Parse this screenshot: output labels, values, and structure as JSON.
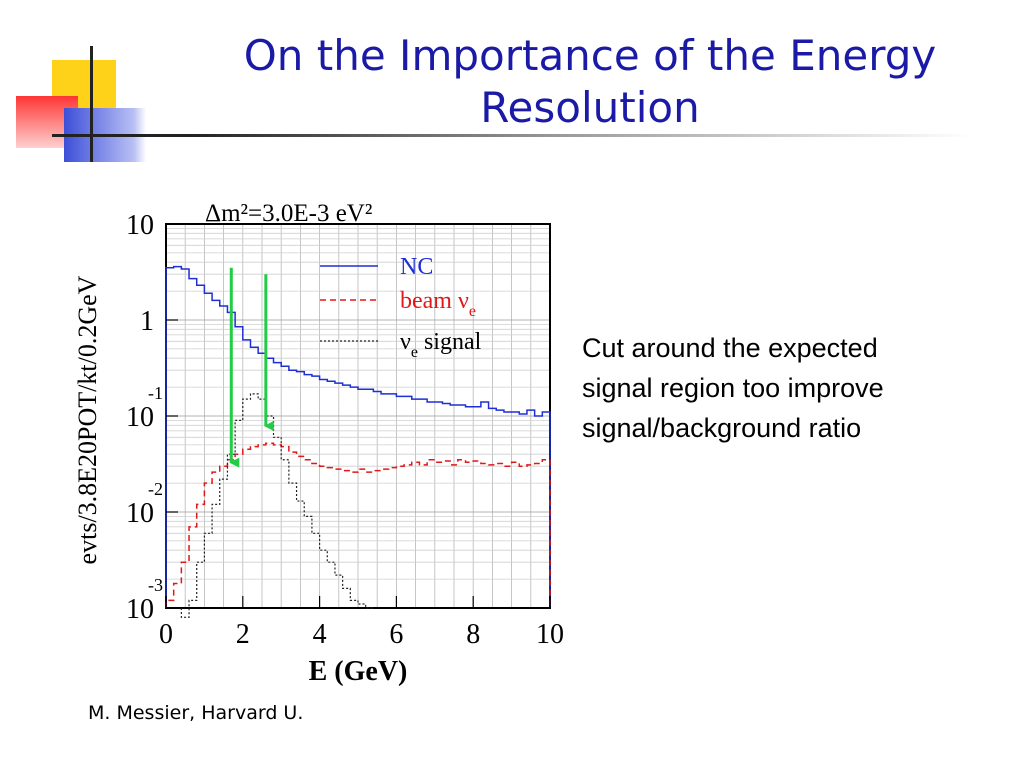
{
  "slide": {
    "title_line1": "On the Importance of the Energy",
    "title_line2": "Resolution",
    "caption_lines": [
      "Cut around the expected",
      "signal region too improve",
      "signal/background ratio"
    ],
    "credit": "M. Messier, Harvard U."
  },
  "colors": {
    "title": "#1a1aa6",
    "nc": "#1f2fd6",
    "beam": "#e01818",
    "signal": "#222222",
    "arrow": "#22cc44",
    "deco_yellow": "#ffd21a",
    "deco_red": "#ff3b3b",
    "deco_blue": "#3d4fd8"
  },
  "chart_data": {
    "type": "line",
    "title": "Δm²=3.0E-3 eV²",
    "xlabel": "E (GeV)",
    "ylabel": "evts/3.8E20POT/kt/0.2GeV",
    "xlim": [
      0,
      10
    ],
    "ylim": [
      0.001,
      10
    ],
    "yscale": "log",
    "xticks": [
      "0",
      "2",
      "4",
      "6",
      "8",
      "10"
    ],
    "yticks": [
      {
        "base": "10",
        "exp": "",
        "value": 10
      },
      {
        "base": "1",
        "exp": "",
        "value": 1
      },
      {
        "base": "10",
        "exp": "-1",
        "value": 0.1
      },
      {
        "base": "10",
        "exp": "-2",
        "value": 0.01
      },
      {
        "base": "10",
        "exp": "-3",
        "value": 0.001
      }
    ],
    "grid": true,
    "legend_position": "top-right",
    "series": [
      {
        "name": "NC",
        "style": "solid",
        "x": [
          0.0,
          0.2,
          0.4,
          0.6,
          0.8,
          1.0,
          1.2,
          1.4,
          1.6,
          1.8,
          2.0,
          2.2,
          2.4,
          2.6,
          2.8,
          3.0,
          3.2,
          3.4,
          3.6,
          3.8,
          4.0,
          4.2,
          4.4,
          4.6,
          4.8,
          5.0,
          5.2,
          5.4,
          5.6,
          5.8,
          6.0,
          6.2,
          6.4,
          6.6,
          6.8,
          7.0,
          7.2,
          7.4,
          7.6,
          7.8,
          8.0,
          8.2,
          8.4,
          8.6,
          8.8,
          9.0,
          9.2,
          9.4,
          9.6,
          9.8
        ],
        "y": [
          3.5,
          3.6,
          3.4,
          2.7,
          2.3,
          1.9,
          1.6,
          1.4,
          1.2,
          0.85,
          0.62,
          0.52,
          0.45,
          0.4,
          0.36,
          0.33,
          0.3,
          0.29,
          0.27,
          0.26,
          0.24,
          0.23,
          0.22,
          0.21,
          0.2,
          0.19,
          0.19,
          0.18,
          0.17,
          0.17,
          0.16,
          0.16,
          0.15,
          0.15,
          0.14,
          0.14,
          0.135,
          0.13,
          0.13,
          0.125,
          0.125,
          0.14,
          0.12,
          0.115,
          0.11,
          0.11,
          0.105,
          0.115,
          0.1,
          0.11
        ]
      },
      {
        "name": "beam νe",
        "style": "dashed",
        "x": [
          0.0,
          0.2,
          0.4,
          0.6,
          0.8,
          1.0,
          1.2,
          1.4,
          1.6,
          1.8,
          2.0,
          2.2,
          2.4,
          2.6,
          2.8,
          3.0,
          3.2,
          3.4,
          3.6,
          3.8,
          4.0,
          4.2,
          4.4,
          4.6,
          4.8,
          5.0,
          5.2,
          5.4,
          5.6,
          5.8,
          6.0,
          6.2,
          6.4,
          6.6,
          6.8,
          7.0,
          7.2,
          7.4,
          7.6,
          7.8,
          8.0,
          8.2,
          8.4,
          8.6,
          8.8,
          9.0,
          9.2,
          9.4,
          9.6,
          9.8
        ],
        "y": [
          0.0012,
          0.0018,
          0.003,
          0.007,
          0.012,
          0.02,
          0.026,
          0.03,
          0.035,
          0.04,
          0.045,
          0.048,
          0.05,
          0.052,
          0.05,
          0.048,
          0.042,
          0.038,
          0.035,
          0.032,
          0.03,
          0.029,
          0.028,
          0.027,
          0.026,
          0.028,
          0.026,
          0.027,
          0.028,
          0.029,
          0.03,
          0.031,
          0.033,
          0.031,
          0.035,
          0.033,
          0.034,
          0.031,
          0.035,
          0.033,
          0.034,
          0.032,
          0.031,
          0.032,
          0.03,
          0.033,
          0.03,
          0.031,
          0.032,
          0.035
        ]
      },
      {
        "name": "νe signal",
        "style": "dotted",
        "x": [
          0.0,
          0.2,
          0.4,
          0.6,
          0.8,
          1.0,
          1.2,
          1.4,
          1.6,
          1.8,
          2.0,
          2.2,
          2.4,
          2.6,
          2.8,
          3.0,
          3.2,
          3.4,
          3.6,
          3.8,
          4.0,
          4.2,
          4.4,
          4.6,
          4.8,
          5.0,
          5.2,
          5.4,
          5.6,
          5.8,
          6.0,
          6.2,
          6.4,
          6.6,
          6.8,
          7.0
        ],
        "y": [
          0.0,
          0.0,
          0.0008,
          0.0012,
          0.003,
          0.006,
          0.012,
          0.022,
          0.04,
          0.09,
          0.15,
          0.17,
          0.15,
          0.1,
          0.06,
          0.035,
          0.02,
          0.013,
          0.009,
          0.006,
          0.004,
          0.003,
          0.0022,
          0.0016,
          0.0012,
          0.0011,
          0.001,
          0.0,
          0.0,
          0.0,
          0.0,
          0.0,
          0.0,
          0.0,
          0.0,
          0.0
        ]
      }
    ],
    "legend": [
      {
        "label": "NC",
        "label_sub": "",
        "style": "solid",
        "color": "#1f2fd6"
      },
      {
        "label": "beam ν",
        "label_sub": "e",
        "style": "dashed",
        "color": "#e01818"
      },
      {
        "label": "ν",
        "label_sub": "e",
        "label_tail": " signal",
        "style": "dotted",
        "color": "#222222"
      }
    ],
    "annotations": [
      {
        "type": "arrow",
        "x": 1.7,
        "y_from": 3.5,
        "y_to": 0.027
      },
      {
        "type": "arrow",
        "x": 2.6,
        "y_from": 3.0,
        "y_to": 0.065
      }
    ]
  }
}
